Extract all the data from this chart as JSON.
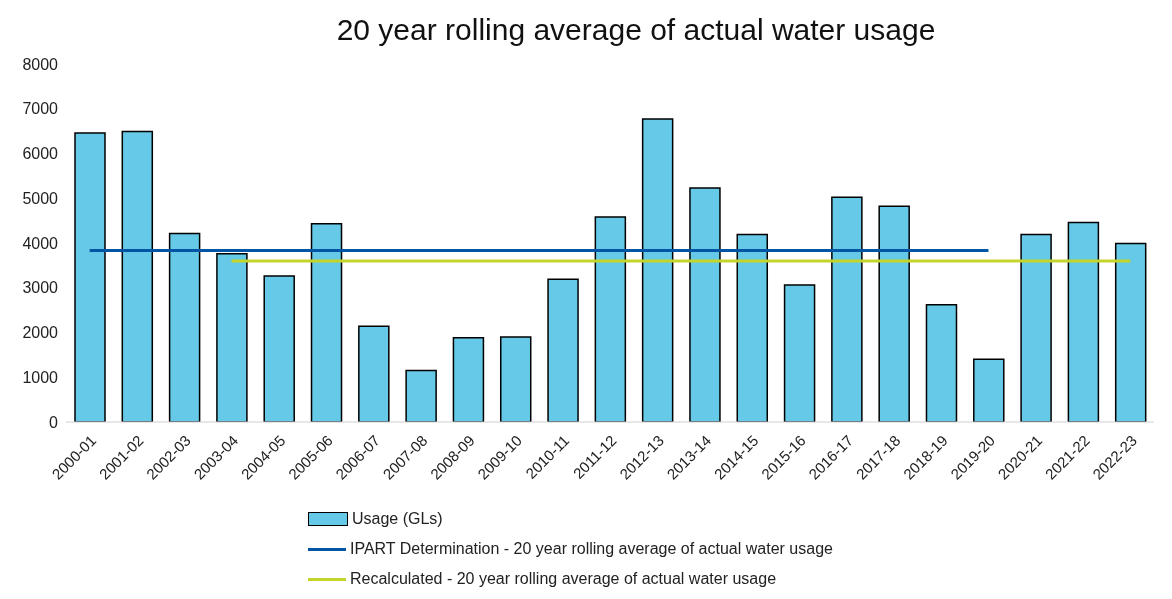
{
  "chart_data": {
    "type": "bar",
    "title": "20 year rolling average of actual water usage",
    "categories": [
      "2000-01",
      "2001-02",
      "2002-03",
      "2003-04",
      "2004-05",
      "2005-06",
      "2006-07",
      "2007-08",
      "2008-09",
      "2009-10",
      "2010-11",
      "2011-12",
      "2012-13",
      "2013-14",
      "2014-15",
      "2015-16",
      "2016-17",
      "2017-18",
      "2018-19",
      "2019-20",
      "2020-21",
      "2021-22",
      "2022-23"
    ],
    "series": [
      {
        "name": "Usage (GLs)",
        "color": "#65c9e7",
        "values": [
          6460,
          6490,
          4210,
          3760,
          3260,
          4430,
          2140,
          1150,
          1880,
          1900,
          3190,
          4580,
          6770,
          5230,
          4190,
          3060,
          5020,
          4820,
          2620,
          1400,
          4190,
          4460,
          3990
        ]
      },
      {
        "name": "IPART Determination - 20 year rolling average of actual water usage",
        "type": "line",
        "color": "#0055a5",
        "values": [
          3830,
          3830,
          3830,
          3830,
          3830,
          3830,
          3830,
          3830,
          3830,
          3830,
          3830,
          3830,
          3830,
          3830,
          3830,
          3830,
          3830,
          3830,
          3830,
          3830,
          null,
          null,
          null
        ]
      },
      {
        "name": "Recalculated - 20 year rolling average of actual water usage",
        "type": "line",
        "color": "#c3d52b",
        "values": [
          null,
          null,
          null,
          3600,
          3600,
          3600,
          3600,
          3600,
          3600,
          3600,
          3600,
          3600,
          3600,
          3600,
          3600,
          3600,
          3600,
          3600,
          3600,
          3600,
          3600,
          3600,
          3600
        ]
      }
    ],
    "ylim": [
      0,
      8000
    ],
    "yticks": [
      0,
      1000,
      2000,
      3000,
      4000,
      5000,
      6000,
      7000,
      8000
    ],
    "grid": false,
    "legend": "bottom",
    "marker": "none",
    "line_style": "solid"
  }
}
